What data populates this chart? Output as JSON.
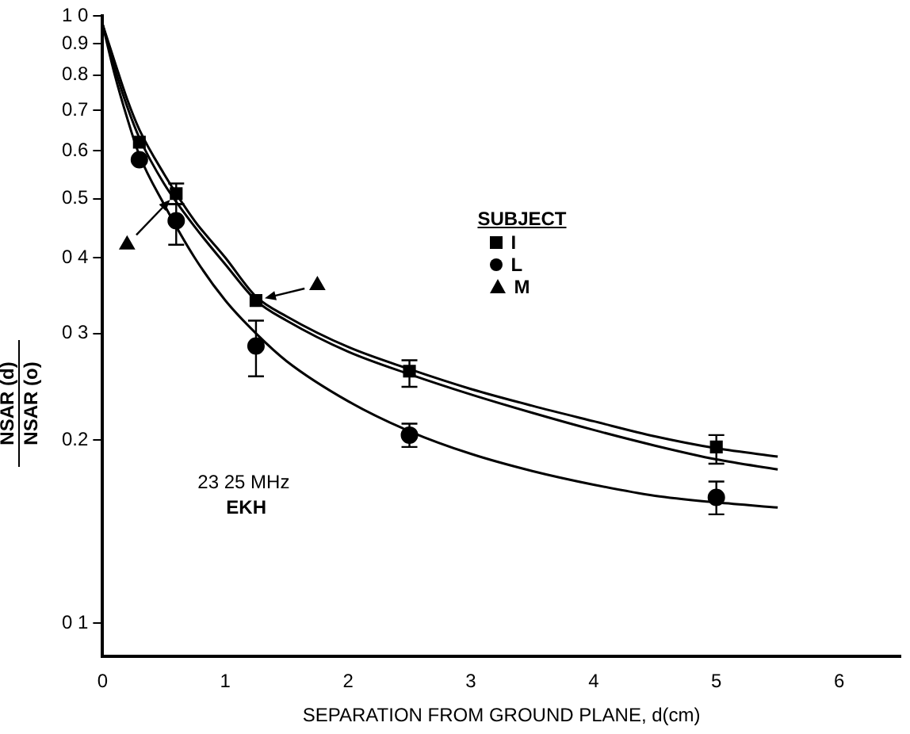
{
  "chart_data": {
    "type": "scatter",
    "xlabel": "SEPARATION FROM GROUND PLANE, d(cm)",
    "ylabel": "NSAR (d) NSAR (o)",
    "legend_title": "SUBJECT",
    "legend": "right",
    "grid": false,
    "log": "y",
    "xlim": [
      0,
      6.5
    ],
    "xticks": [
      0,
      1,
      2,
      3,
      4,
      5,
      6
    ],
    "ylim": [
      0.088,
      1.0
    ],
    "yticks": [
      {
        "value": 1.0,
        "label": "1 0"
      },
      0.9,
      0.8,
      0.7,
      0.6,
      0.5,
      {
        "value": 0.4,
        "label": "0 4"
      },
      {
        "value": 0.3,
        "label": "0 3"
      },
      0.2,
      {
        "value": 0.1,
        "label": "0 1"
      }
    ],
    "series": [
      {
        "name": "I",
        "color": "#000000",
        "marker": "square",
        "x": [
          0.3,
          0.6,
          1.25,
          2.5,
          5
        ],
        "values": [
          0.62,
          0.51,
          0.34,
          0.26,
          0.195
        ],
        "errors": [
          null,
          [
            0.49,
            0.53
          ],
          null,
          [
            0.245,
            0.271
          ],
          [
            0.183,
            0.204
          ]
        ]
      },
      {
        "name": "L",
        "color": "#000000",
        "marker": "circle",
        "x": [
          0.3,
          0.6,
          1.25,
          2.5,
          5
        ],
        "values": [
          0.58,
          0.46,
          0.286,
          0.204,
          0.161
        ],
        "errors": [
          null,
          [
            0.42,
            0.49
          ],
          [
            0.255,
            0.315
          ],
          [
            0.195,
            0.213
          ],
          [
            0.151,
            0.171
          ]
        ]
      },
      {
        "name": "M",
        "color": "#000000",
        "marker": "triangle",
        "x": [
          0.2,
          1.75
        ],
        "values": [
          0.42,
          0.36
        ]
      },
      {
        "type": "line",
        "color": "#000000",
        "marker": "none",
        "x": [
          0,
          0.1,
          0.2,
          0.3,
          0.5,
          0.75,
          1,
          1.25,
          1.5,
          2,
          2.5,
          3,
          3.5,
          4,
          4.5,
          5,
          5.5
        ],
        "values": [
          0.97,
          0.84,
          0.73,
          0.65,
          0.55,
          0.46,
          0.4,
          0.345,
          0.32,
          0.285,
          0.262,
          0.243,
          0.228,
          0.215,
          0.203,
          0.194,
          0.188
        ]
      },
      {
        "type": "line",
        "color": "#000000",
        "marker": "none",
        "x": [
          0,
          0.1,
          0.2,
          0.3,
          0.5,
          0.75,
          1,
          1.25,
          1.5,
          2,
          2.5,
          3,
          3.5,
          4,
          4.5,
          5,
          5.5
        ],
        "values": [
          0.97,
          0.82,
          0.71,
          0.63,
          0.53,
          0.45,
          0.39,
          0.34,
          0.315,
          0.28,
          0.257,
          0.238,
          0.222,
          0.208,
          0.196,
          0.186,
          0.179
        ]
      },
      {
        "type": "line",
        "color": "#000000",
        "marker": "none",
        "x": [
          0,
          0.1,
          0.2,
          0.3,
          0.5,
          0.75,
          1,
          1.25,
          1.5,
          2,
          2.5,
          3,
          3.5,
          4,
          4.5,
          5,
          5.5
        ],
        "values": [
          0.97,
          0.8,
          0.68,
          0.59,
          0.49,
          0.4,
          0.34,
          0.3,
          0.27,
          0.232,
          0.207,
          0.19,
          0.178,
          0.169,
          0.162,
          0.158,
          0.155
        ]
      }
    ],
    "annotations": [
      "23 25 MHz",
      "EKH"
    ]
  }
}
